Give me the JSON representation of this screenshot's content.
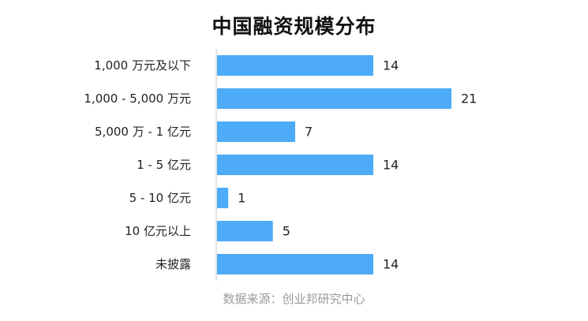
{
  "chart_data": {
    "type": "bar",
    "orientation": "horizontal",
    "title": "中国融资规模分布",
    "categories": [
      "1,000 万元及以下",
      "1,000 - 5,000 万元",
      "5,000 万 - 1 亿元",
      "1 - 5 亿元",
      "5 - 10 亿元",
      "10 亿元以上",
      "未披露"
    ],
    "values": [
      14,
      21,
      7,
      14,
      1,
      5,
      14
    ],
    "data_labels": [
      "14",
      "21",
      "7",
      "14",
      "1",
      "5",
      "14"
    ],
    "bar_color": "#4dabf7",
    "xlim": [
      0,
      21
    ],
    "grid": false,
    "legend": "none"
  },
  "source": "数据来源：创业邦研究中心"
}
